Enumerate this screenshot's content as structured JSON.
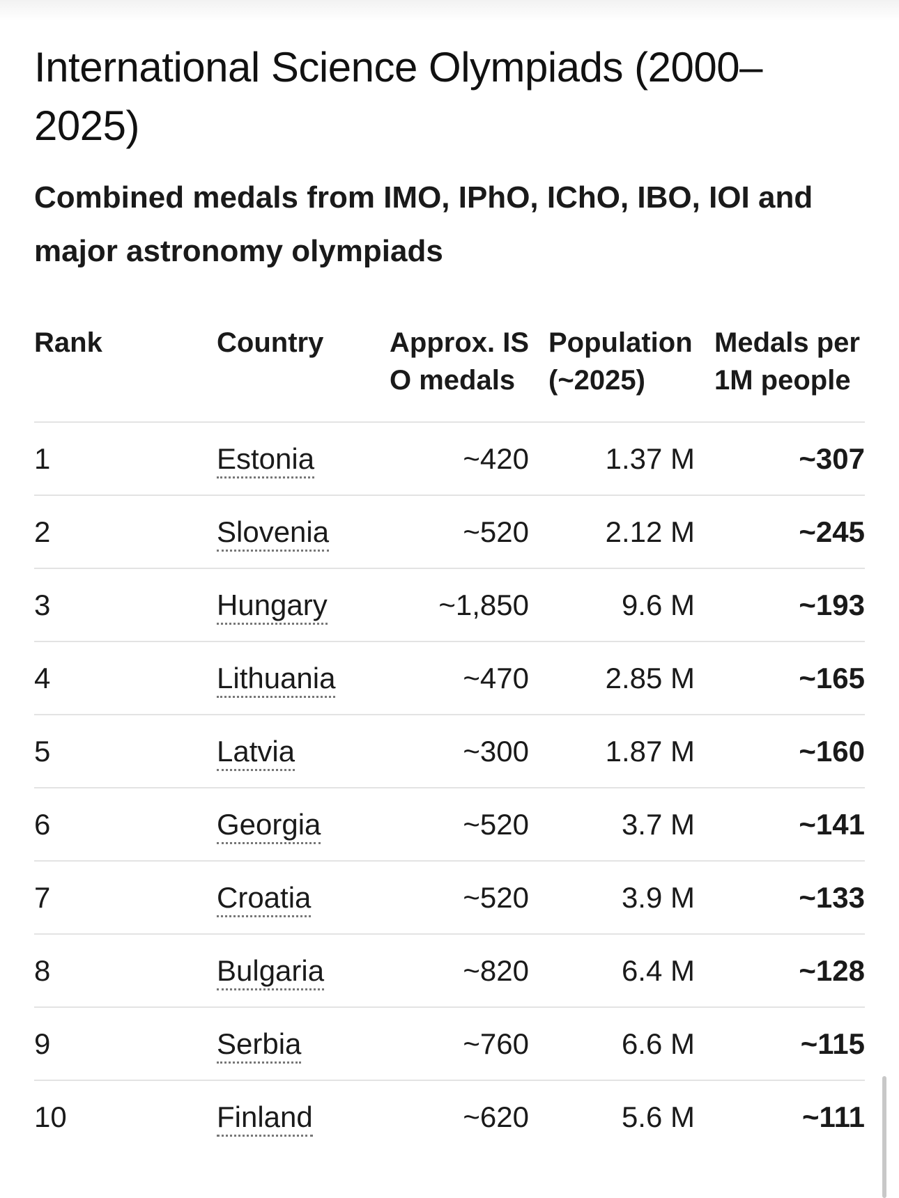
{
  "title": "International Science Olympiads (2000–2025)",
  "subtitle": "Combined medals from IMO, IPhO, IChO, IBO, IOI and major astronomy olympiads",
  "table": {
    "headers": {
      "rank": "Rank",
      "country": "Country",
      "medals": "Approx. ISO medals",
      "population": "Population (~2025)",
      "per_million": "Medals per 1M people"
    },
    "rows": [
      {
        "rank": "1",
        "country": "Estonia",
        "medals": "~420",
        "population": "1.37 M",
        "per_million": "~307"
      },
      {
        "rank": "2",
        "country": "Slovenia",
        "medals": "~520",
        "population": "2.12 M",
        "per_million": "~245"
      },
      {
        "rank": "3",
        "country": "Hungary",
        "medals": "~1,850",
        "population": "9.6 M",
        "per_million": "~193"
      },
      {
        "rank": "4",
        "country": "Lithuania",
        "medals": "~470",
        "population": "2.85 M",
        "per_million": "~165"
      },
      {
        "rank": "5",
        "country": "Latvia",
        "medals": "~300",
        "population": "1.87 M",
        "per_million": "~160"
      },
      {
        "rank": "6",
        "country": "Georgia",
        "medals": "~520",
        "population": "3.7 M",
        "per_million": "~141"
      },
      {
        "rank": "7",
        "country": "Croatia",
        "medals": "~520",
        "population": "3.9 M",
        "per_million": "~133"
      },
      {
        "rank": "8",
        "country": "Bulgaria",
        "medals": "~820",
        "population": "6.4 M",
        "per_million": "~128"
      },
      {
        "rank": "9",
        "country": "Serbia",
        "medals": "~760",
        "population": "6.6 M",
        "per_million": "~115"
      },
      {
        "rank": "10",
        "country": "Finland",
        "medals": "~620",
        "population": "5.6 M",
        "per_million": "~111"
      }
    ]
  }
}
